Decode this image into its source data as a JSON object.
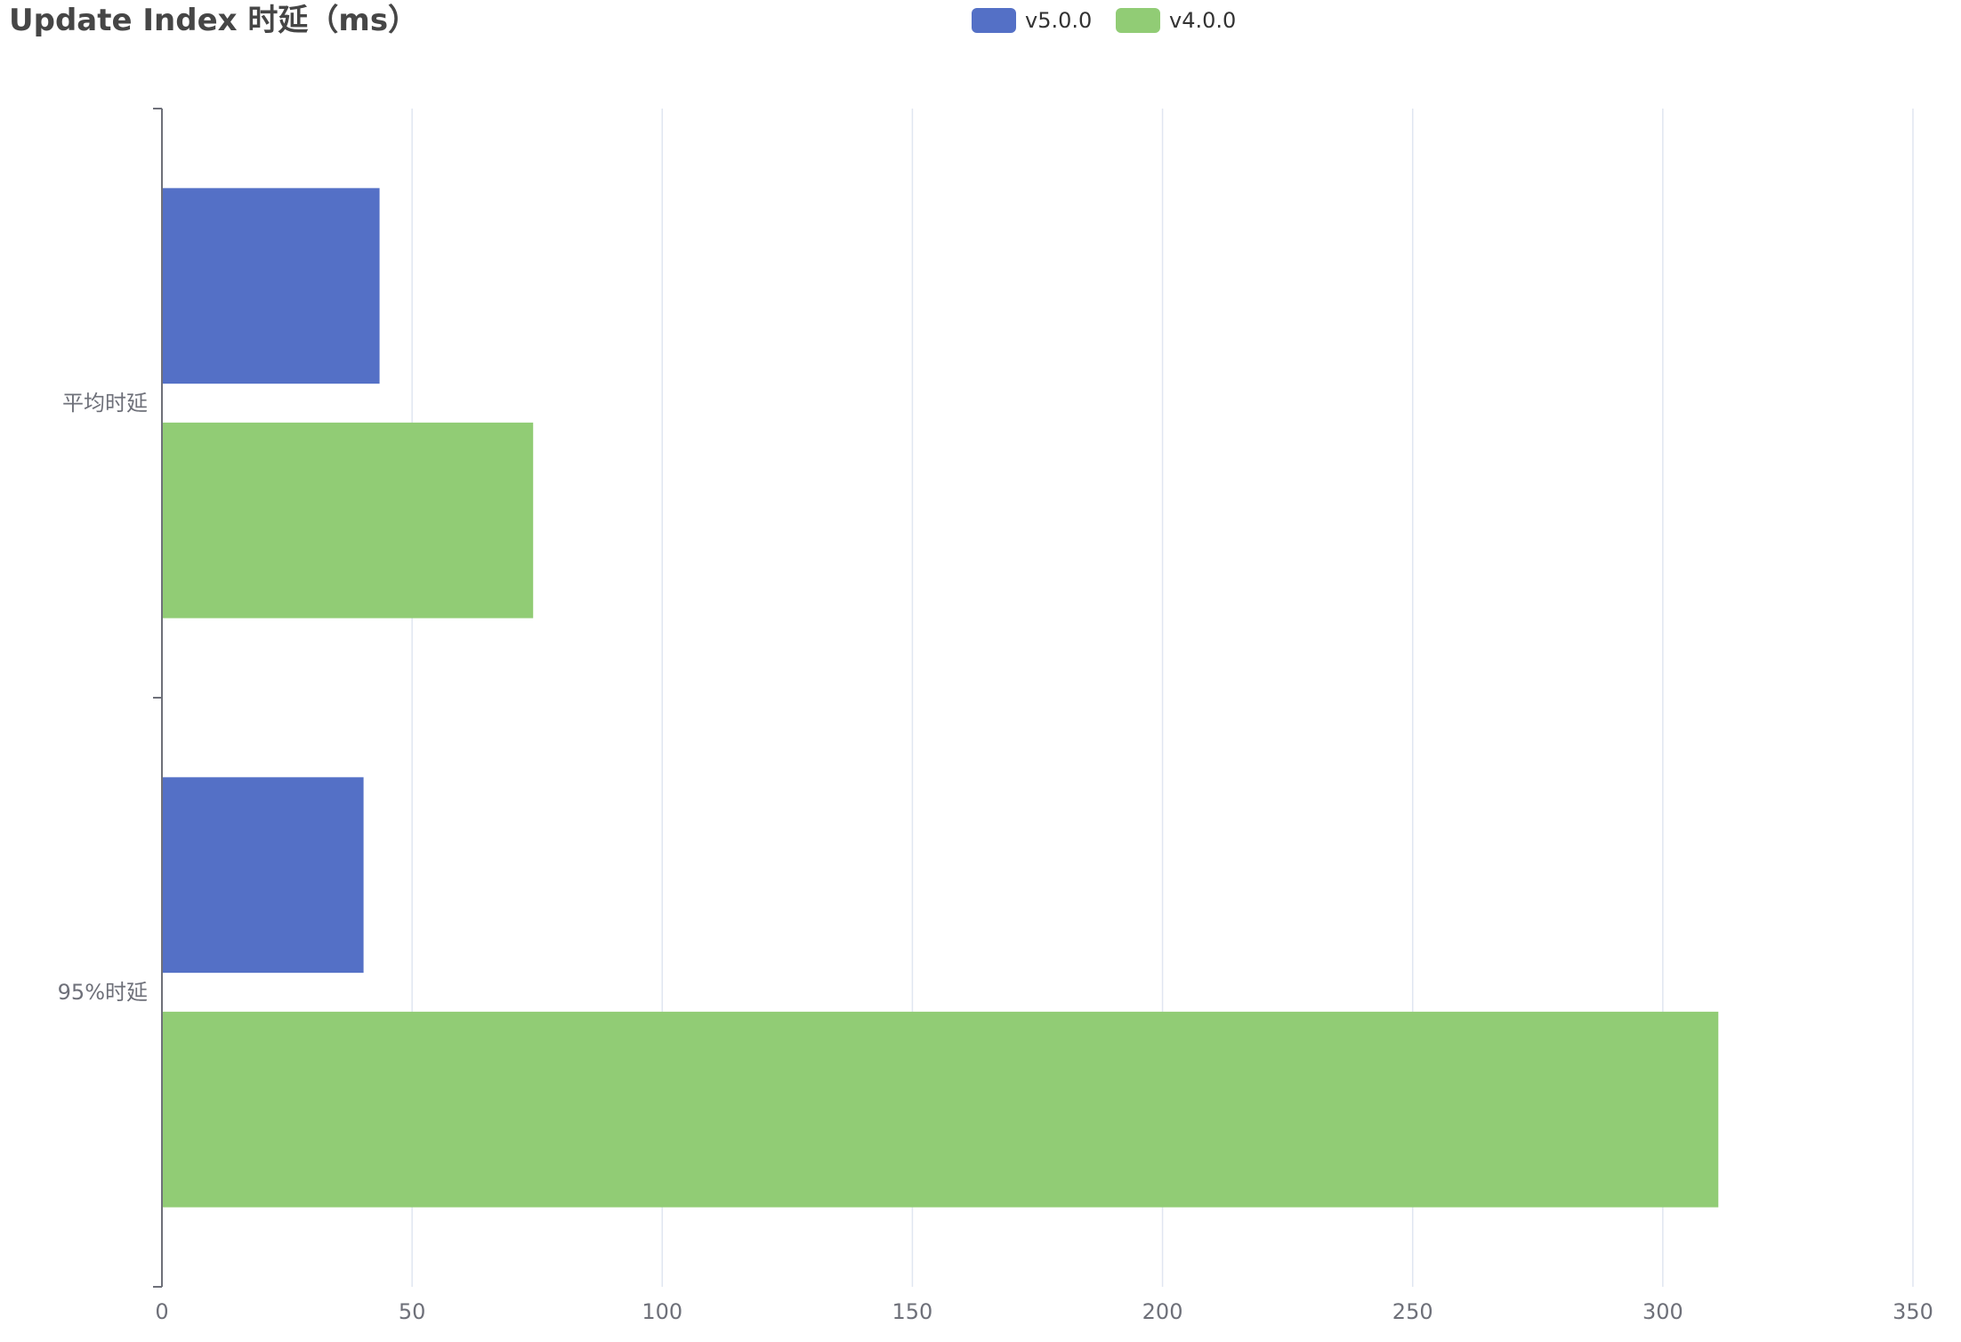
{
  "chart_data": {
    "type": "bar",
    "orientation": "horizontal",
    "title": "Update Index 时延（ms）",
    "categories": [
      "平均时延",
      "95%时延"
    ],
    "series": [
      {
        "name": "v5.0.0",
        "color": "#5470c6",
        "values": [
          43.5,
          40.3
        ]
      },
      {
        "name": "v4.0.0",
        "color": "#91cc75",
        "values": [
          74.2,
          311.1
        ]
      }
    ],
    "xlim": [
      0,
      350
    ],
    "xticks": [
      "0",
      "50",
      "100",
      "150",
      "200",
      "250",
      "300",
      "350"
    ],
    "grid": true,
    "legend_position": "top-center"
  }
}
